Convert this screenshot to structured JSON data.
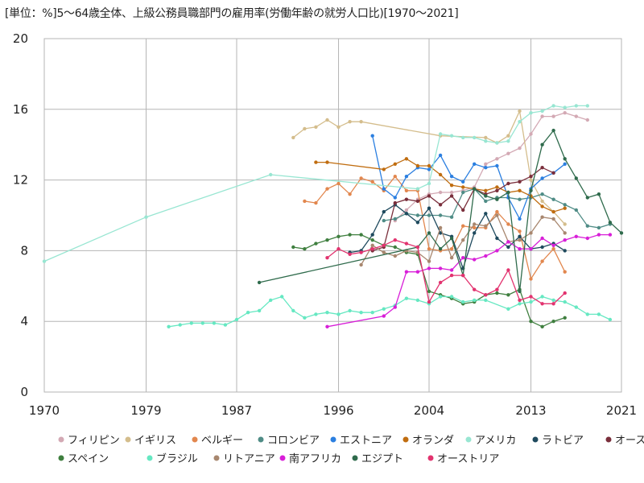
{
  "chart_data": {
    "type": "line",
    "title": "[単位：%]5～64歳全体、上級公務員職部門の雇用率(労働年齢の就労人口比)[1970～2021]",
    "unit_label": "[単位：%]",
    "title_text": "5～64歳全体、上級公務員職部門の雇用率(労働年齢の就労人口比)[1970～2021]",
    "xlabel": "",
    "ylabel": "",
    "xlim": [
      1970,
      2021
    ],
    "ylim": [
      0,
      20
    ],
    "x_ticks": [
      1970,
      1979,
      1987,
      1996,
      2004,
      2013,
      2021
    ],
    "y_ticks": [
      0,
      4,
      8,
      12,
      16,
      20
    ],
    "grid": true,
    "legend_position": "bottom",
    "series": [
      {
        "name": "フィリピン",
        "color": "#d3a9b4",
        "x": [
          2001,
          2002,
          2003,
          2004,
          2005,
          2006,
          2007,
          2008,
          2009,
          2010,
          2011,
          2012,
          2013,
          2014,
          2015,
          2016,
          2017,
          2018
        ],
        "y": [
          9.7,
          10.3,
          10.9,
          11.2,
          11.3,
          11.3,
          11.4,
          11.6,
          12.9,
          13.2,
          13.5,
          13.8,
          14.6,
          15.6,
          15.6,
          15.8,
          15.6,
          15.4
        ]
      },
      {
        "name": "イギリス",
        "color": "#d4bd8c",
        "x": [
          1992,
          1993,
          1994,
          1995,
          1996,
          1997,
          1998,
          2005,
          2009,
          2010,
          2011,
          2012,
          2013,
          2014,
          2015,
          2016
        ],
        "y": [
          14.4,
          14.9,
          15.0,
          15.4,
          15.0,
          15.3,
          15.3,
          14.5,
          14.4,
          14.1,
          14.5,
          15.9,
          12.0,
          10.8,
          10.2,
          9.5
        ]
      },
      {
        "name": "ベルギー",
        "color": "#e2874e",
        "x": [
          1993,
          1994,
          1995,
          1996,
          1997,
          1998,
          1999,
          2000,
          2001,
          2002,
          2003,
          2004,
          2005,
          2006,
          2007,
          2008,
          2009,
          2010,
          2011,
          2012,
          2013,
          2014,
          2015,
          2016
        ],
        "y": [
          10.8,
          10.7,
          11.5,
          11.8,
          11.2,
          12.1,
          11.9,
          11.4,
          12.2,
          11.4,
          11.4,
          8.1,
          8.0,
          8.1,
          9.4,
          9.3,
          9.3,
          10.2,
          9.5,
          9.1,
          6.4,
          7.4,
          8.1,
          6.8
        ]
      },
      {
        "name": "コロンビア",
        "color": "#4f8c86",
        "x": [
          2000,
          2001,
          2002,
          2003,
          2004,
          2005,
          2006,
          2007,
          2008,
          2009,
          2010,
          2011,
          2012,
          2013,
          2014,
          2015,
          2016,
          2017,
          2018,
          2019,
          2020
        ],
        "y": [
          9.7,
          9.8,
          10.1,
          10.0,
          10.0,
          10.0,
          9.9,
          11.3,
          11.5,
          10.8,
          11.0,
          11.0,
          10.9,
          11.0,
          11.2,
          10.9,
          10.6,
          10.3,
          9.4,
          9.3,
          9.5
        ]
      },
      {
        "name": "エストニア",
        "color": "#2b7fe0",
        "x": [
          1999,
          2000,
          2001,
          2002,
          2003,
          2004,
          2005,
          2006,
          2007,
          2008,
          2009,
          2010,
          2011,
          2012,
          2013,
          2014,
          2015,
          2016
        ],
        "y": [
          14.5,
          11.5,
          11.0,
          12.2,
          12.7,
          12.6,
          13.4,
          12.2,
          11.9,
          12.9,
          12.7,
          12.8,
          11.0,
          9.8,
          11.5,
          12.1,
          12.4,
          12.9
        ]
      },
      {
        "name": "オランダ",
        "color": "#c06d10",
        "x": [
          1994,
          1995,
          2000,
          2001,
          2002,
          2003,
          2004,
          2005,
          2006,
          2007,
          2008,
          2009,
          2010,
          2011,
          2012,
          2013,
          2014,
          2015,
          2016
        ],
        "y": [
          13.0,
          13.0,
          12.6,
          12.9,
          13.2,
          12.8,
          12.8,
          12.3,
          11.7,
          11.6,
          11.5,
          11.4,
          11.6,
          11.3,
          11.4,
          11.1,
          10.5,
          10.2,
          10.4
        ]
      },
      {
        "name": "アメリカ",
        "color": "#98e6d2",
        "x": [
          1970,
          1979,
          1990,
          2003,
          2004,
          2005,
          2006,
          2007,
          2008,
          2009,
          2010,
          2011,
          2012,
          2013,
          2014,
          2015,
          2016,
          2017,
          2018
        ],
        "y": [
          7.4,
          9.9,
          12.3,
          11.5,
          11.8,
          14.6,
          14.5,
          14.4,
          14.4,
          14.2,
          14.1,
          14.2,
          15.3,
          15.8,
          15.9,
          16.2,
          16.1,
          16.2,
          16.2
        ]
      },
      {
        "name": "ラトビア",
        "color": "#1f4a5e",
        "x": [
          1997,
          1998,
          1999,
          2000,
          2001,
          2002,
          2003,
          2004,
          2005,
          2006,
          2007,
          2008,
          2009,
          2010,
          2011,
          2012,
          2013,
          2014,
          2015,
          2016
        ],
        "y": [
          7.9,
          8.0,
          8.9,
          10.2,
          10.6,
          10.1,
          9.6,
          10.4,
          9.0,
          8.8,
          7.0,
          9.0,
          10.1,
          8.7,
          8.2,
          8.8,
          8.1,
          8.2,
          8.4,
          8.0
        ]
      },
      {
        "name": "オーストラリア",
        "color": "#7a2e3b",
        "x": [
          1999,
          2000,
          2001,
          2002,
          2003,
          2004,
          2005,
          2006,
          2007,
          2008,
          2009,
          2010,
          2011,
          2012,
          2013,
          2014,
          2015
        ],
        "y": [
          8.0,
          8.2,
          10.7,
          10.9,
          10.8,
          11.1,
          10.6,
          11.1,
          10.3,
          11.5,
          11.2,
          11.4,
          11.8,
          11.9,
          12.2,
          12.7,
          12.4
        ]
      },
      {
        "name": "スペイン",
        "color": "#3f7f3f",
        "x": [
          1992,
          1993,
          1994,
          1995,
          1996,
          1997,
          1998,
          1999,
          2000,
          2001,
          2002,
          2003,
          2004,
          2005,
          2006,
          2007,
          2008,
          2009,
          2010,
          2011,
          2012,
          2013,
          2014,
          2015,
          2016
        ],
        "y": [
          8.2,
          8.1,
          8.4,
          8.6,
          8.8,
          8.9,
          8.9,
          8.6,
          8.3,
          8.2,
          7.9,
          7.8,
          5.7,
          5.5,
          5.3,
          5.0,
          5.1,
          5.5,
          5.6,
          5.5,
          5.8,
          4.0,
          3.7,
          4.0,
          4.2
        ]
      },
      {
        "name": "ブラジル",
        "color": "#66e8c2",
        "x": [
          1981,
          1982,
          1983,
          1984,
          1985,
          1986,
          1987,
          1988,
          1989,
          1990,
          1991,
          1992,
          1993,
          1994,
          1995,
          1996,
          1997,
          1998,
          1999,
          2000,
          2001,
          2002,
          2003,
          2004,
          2005,
          2006,
          2007,
          2008,
          2009,
          2011,
          2012,
          2013,
          2014,
          2015,
          2016,
          2017,
          2018,
          2019,
          2020
        ],
        "y": [
          3.7,
          3.8,
          3.9,
          3.9,
          3.9,
          3.8,
          4.1,
          4.5,
          4.6,
          5.2,
          5.4,
          4.6,
          4.2,
          4.4,
          4.5,
          4.4,
          4.6,
          4.5,
          4.5,
          4.7,
          4.9,
          5.3,
          5.2,
          5.0,
          5.4,
          5.4,
          5.1,
          5.2,
          5.2,
          4.7,
          5.0,
          5.1,
          5.4,
          5.2,
          5.1,
          4.8,
          4.4,
          4.4,
          4.1
        ]
      },
      {
        "name": "リトアニア",
        "color": "#a8876f",
        "x": [
          1998,
          1999,
          2000,
          2001,
          2002,
          2003,
          2004,
          2005,
          2006,
          2007,
          2008,
          2009,
          2010,
          2011,
          2012,
          2013,
          2014,
          2015,
          2016
        ],
        "y": [
          7.2,
          8.3,
          7.9,
          7.7,
          8.0,
          7.9,
          7.4,
          9.3,
          7.6,
          8.6,
          9.5,
          9.4,
          10.0,
          8.5,
          8.6,
          9.0,
          9.9,
          9.8,
          9.0
        ]
      },
      {
        "name": "南アフリカ",
        "color": "#d81fd8",
        "x": [
          1995,
          2000,
          2001,
          2002,
          2003,
          2004,
          2005,
          2006,
          2007,
          2008,
          2009,
          2010,
          2011,
          2012,
          2013,
          2014,
          2015,
          2016,
          2017,
          2018,
          2019,
          2020
        ],
        "y": [
          3.7,
          4.3,
          4.8,
          6.8,
          6.8,
          7.0,
          7.0,
          6.9,
          7.6,
          7.5,
          7.7,
          8.0,
          8.5,
          8.1,
          8.1,
          8.7,
          8.3,
          8.6,
          8.8,
          8.7,
          8.9,
          8.9
        ]
      },
      {
        "name": "エジプト",
        "color": "#2f6b4c",
        "x": [
          1989,
          2003,
          2004,
          2005,
          2006,
          2007,
          2008,
          2009,
          2010,
          2011,
          2012,
          2013,
          2014,
          2015,
          2016,
          2017,
          2018,
          2019,
          2020,
          2021
        ],
        "y": [
          6.2,
          8.2,
          9.0,
          8.1,
          8.7,
          6.6,
          11.5,
          11.1,
          10.9,
          11.3,
          5.7,
          11.4,
          14.0,
          14.8,
          13.2,
          12.1,
          11.0,
          11.2,
          9.6,
          9.0
        ]
      },
      {
        "name": "オーストリア",
        "color": "#e2336f",
        "x": [
          1995,
          1996,
          1997,
          1998,
          1999,
          2000,
          2001,
          2002,
          2003,
          2004,
          2005,
          2006,
          2007,
          2008,
          2009,
          2010,
          2011,
          2012,
          2013,
          2014,
          2015,
          2016
        ],
        "y": [
          7.6,
          8.1,
          7.8,
          7.9,
          8.1,
          8.3,
          8.6,
          8.4,
          8.2,
          5.1,
          6.2,
          6.6,
          6.6,
          5.8,
          5.5,
          5.8,
          6.9,
          5.2,
          5.4,
          5.0,
          5.0,
          5.6
        ]
      }
    ]
  }
}
